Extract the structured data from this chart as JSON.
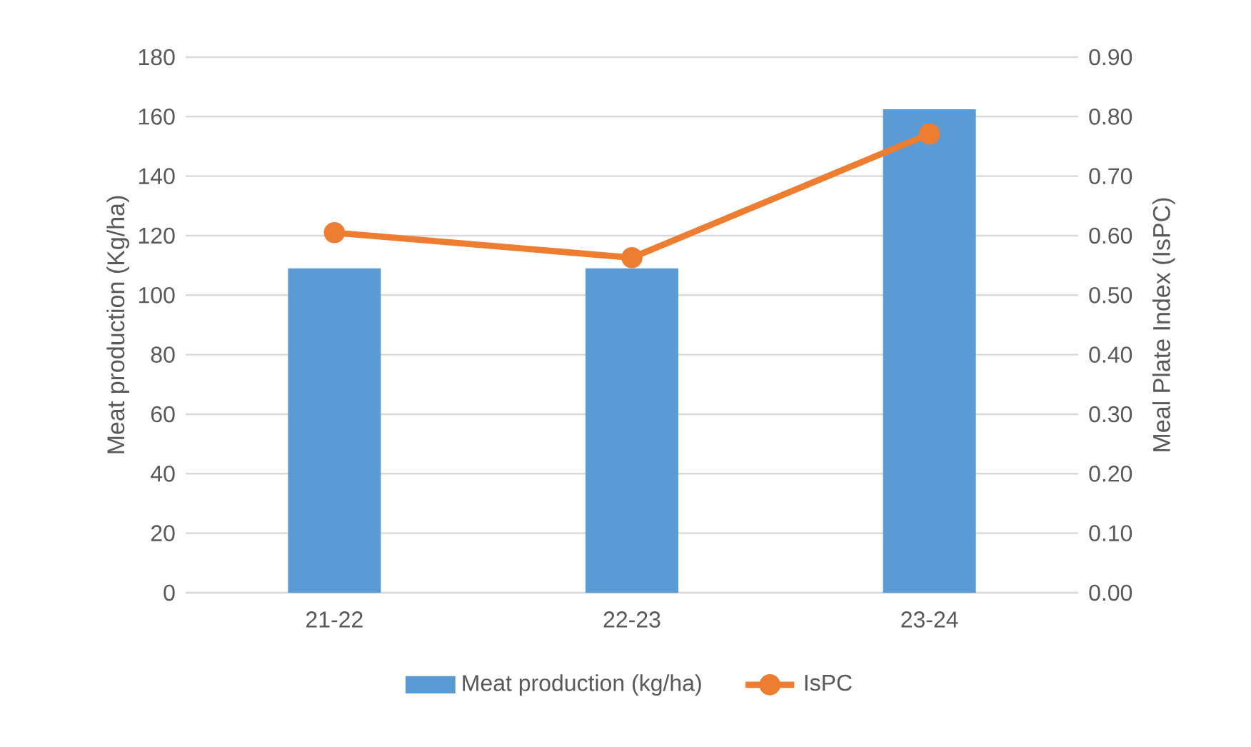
{
  "chart_data": {
    "type": "bar",
    "categories": [
      "21-22",
      "22-23",
      "23-24"
    ],
    "ylabel": "Meat production (Kg/ha)",
    "y2label": "Meal Plate Index (IsPC)",
    "ylim": [
      0,
      180
    ],
    "yticks": [
      0,
      20,
      40,
      60,
      80,
      100,
      120,
      140,
      160,
      180
    ],
    "y2lim": [
      0,
      0.9
    ],
    "y2ticks": [
      {
        "value": 0,
        "label": "0.00"
      },
      {
        "value": 0.1,
        "label": "0.10"
      },
      {
        "value": 0.2,
        "label": "0.20"
      },
      {
        "value": 0.3,
        "label": "0.30"
      },
      {
        "value": 0.4,
        "label": "0.40"
      },
      {
        "value": 0.5,
        "label": "0.50"
      },
      {
        "value": 0.6,
        "label": "0.60"
      },
      {
        "value": 0.7,
        "label": "0.70"
      },
      {
        "value": 0.8,
        "label": "0.80"
      },
      {
        "value": 0.9,
        "label": "0.90"
      }
    ],
    "series": [
      {
        "name": "Meat production (kg/ha)",
        "color": "#5b9bd5",
        "values": [
          109,
          109,
          162.5
        ]
      },
      {
        "name": "IsPC",
        "type": "line",
        "axis": "y2",
        "color": "#ed7d31",
        "marker": "circle",
        "values": [
          0.605,
          0.563,
          0.771
        ]
      }
    ],
    "grid": "y",
    "legend": "bottom"
  }
}
